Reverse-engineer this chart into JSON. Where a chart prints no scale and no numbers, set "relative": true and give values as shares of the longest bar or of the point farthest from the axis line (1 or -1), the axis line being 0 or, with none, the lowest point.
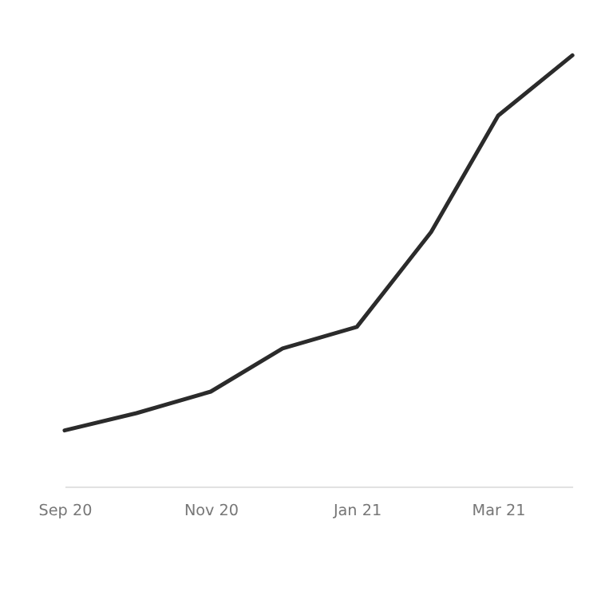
{
  "chart_data": {
    "type": "line",
    "relative": true,
    "x": [
      "2020-09",
      "2020-10",
      "2020-11",
      "2020-12",
      "2021-01",
      "2021-02",
      "2021-03",
      "2021-04"
    ],
    "series": [
      {
        "color": "#2b2b2b",
        "values": [
          0.13,
          0.17,
          0.22,
          0.32,
          0.37,
          0.59,
          0.86,
          1
        ]
      }
    ],
    "xlim": [
      "2020-09-01",
      "2021-04-01"
    ],
    "xticks": [
      {
        "value": "2020-09-01",
        "label": "Sep 20"
      },
      {
        "value": "2020-11-01",
        "label": "Nov 20"
      },
      {
        "value": "2021-01-01",
        "label": "Jan 21"
      },
      {
        "value": "2021-03-01",
        "label": "Mar 21"
      }
    ],
    "grid": false,
    "legend": false,
    "marker": "none",
    "line_style": "solid"
  }
}
